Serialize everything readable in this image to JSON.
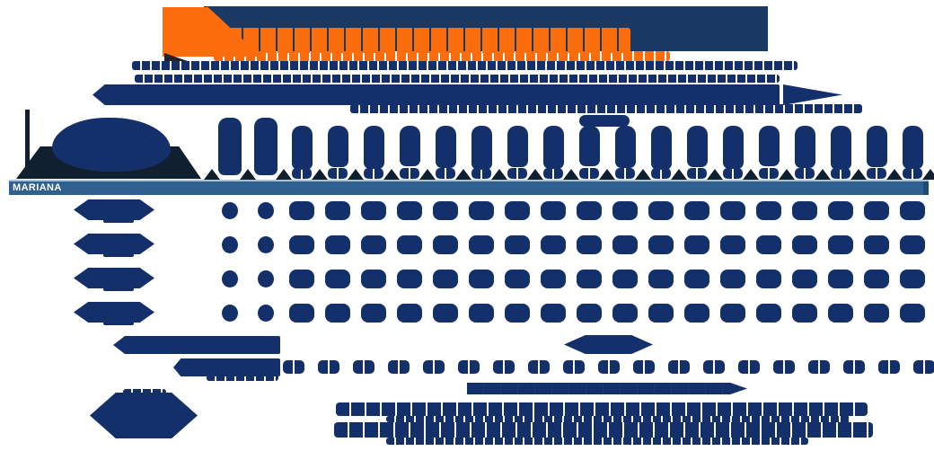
{
  "page": {
    "background": "#ffffff"
  },
  "palette": {
    "navy": "#14306a",
    "logo_navy": "#1a3a66",
    "orange": "#fb6d0d",
    "band_blue": "#2f6090",
    "band_top_border": "#a9c1d5",
    "band_right_cap": "#1f4a73",
    "dark_shape": "#10202e",
    "band_label_color": "#ffffff"
  },
  "section_band": {
    "label": "MARIANA"
  },
  "table": {
    "column_count": 20,
    "tall_header_columns": 2,
    "numbered_column_start": 2,
    "data_row_count": 4
  },
  "footer": {
    "number_count": 19
  }
}
